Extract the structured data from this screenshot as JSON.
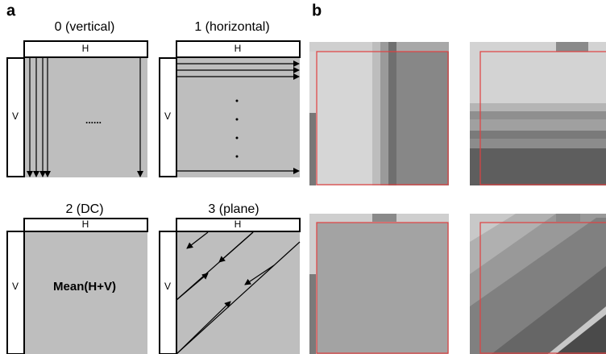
{
  "panel_a": {
    "label": "a",
    "modes": [
      {
        "title": "0 (vertical)",
        "h": "H",
        "v": "V",
        "body": "......"
      },
      {
        "title": "1 (horizontal)",
        "h": "H",
        "v": "V"
      },
      {
        "title": "2 (DC)",
        "h": "H",
        "v": "V",
        "body": "Mean(H+V)"
      },
      {
        "title": "3 (plane)",
        "h": "H",
        "v": "V"
      }
    ]
  },
  "panel_b": {
    "label": "b"
  }
}
